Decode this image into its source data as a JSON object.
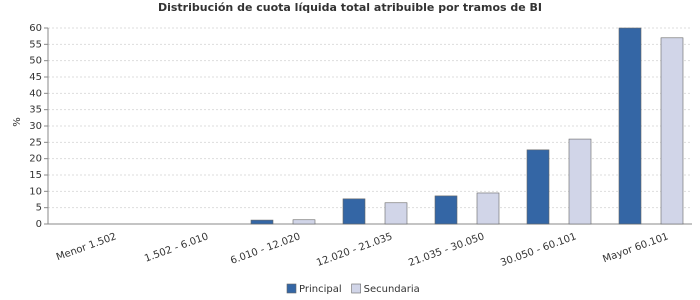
{
  "chart_data": {
    "type": "bar",
    "title": "Distribución de cuota líquida total atribuible por tramos de BI",
    "y_label": "%",
    "categories": [
      "Menor 1.502",
      "1.502 - 6.010",
      "6.010 - 12.020",
      "12.020 - 21.035",
      "21.035 - 30.050",
      "30.050 - 60.101",
      "Mayor 60.101"
    ],
    "series": [
      {
        "name": "Principal",
        "color": "#3466a5",
        "values": [
          0,
          0,
          1.2,
          7.7,
          8.6,
          22.7,
          60.0
        ]
      },
      {
        "name": "Secundaria",
        "color": "#d1d5e8",
        "values": [
          0,
          0,
          1.3,
          6.5,
          9.5,
          26.0,
          57.0
        ]
      }
    ],
    "ylim": [
      0,
      60
    ],
    "yticks": [
      0,
      5,
      10,
      15,
      20,
      25,
      30,
      35,
      40,
      45,
      50,
      55,
      60
    ],
    "grid": true
  }
}
